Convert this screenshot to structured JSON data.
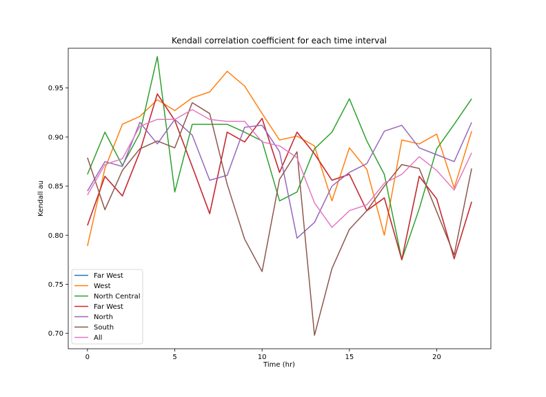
{
  "chart_data": {
    "type": "line",
    "title": "Kendall correlation coefficient for each time interval",
    "xlabel": "Time (hr)",
    "ylabel": "Kendall au",
    "xlim": [
      -1.1,
      23.1
    ],
    "ylim": [
      0.6843,
      0.9905
    ],
    "xticks": [
      0,
      5,
      10,
      15,
      20
    ],
    "yticks": [
      0.7,
      0.75,
      0.8,
      0.85,
      0.9,
      0.95
    ],
    "ytick_labels": [
      "0.70",
      "0.75",
      "0.80",
      "0.85",
      "0.90",
      "0.95"
    ],
    "grid": false,
    "legend_position": "lower-left",
    "x": [
      0,
      1,
      2,
      3,
      4,
      5,
      6,
      7,
      8,
      9,
      10,
      11,
      12,
      13,
      14,
      15,
      16,
      17,
      18,
      19,
      20,
      21,
      22
    ],
    "series": [
      {
        "name": "Far West",
        "color": "#1f77b4",
        "values": [
          0.81,
          0.86,
          0.84,
          0.885,
          0.944,
          0.917,
          0.87,
          0.822,
          0.905,
          0.895,
          0.919,
          0.864,
          0.905,
          0.883,
          0.856,
          0.862,
          0.825,
          0.838,
          0.775,
          0.86,
          0.837,
          0.776,
          0.834
        ]
      },
      {
        "name": "West",
        "color": "#ff7f0e",
        "values": [
          0.789,
          0.868,
          0.913,
          0.921,
          0.938,
          0.927,
          0.94,
          0.946,
          0.967,
          0.952,
          0.924,
          0.897,
          0.901,
          0.891,
          0.835,
          0.889,
          0.867,
          0.8,
          0.897,
          0.893,
          0.903,
          0.848,
          0.906
        ]
      },
      {
        "name": "North Central",
        "color": "#2ca02c",
        "values": [
          0.862,
          0.905,
          0.871,
          0.904,
          0.982,
          0.844,
          0.913,
          0.913,
          0.913,
          0.905,
          0.896,
          0.835,
          0.844,
          0.888,
          0.905,
          0.939,
          0.896,
          0.862,
          0.775,
          0.827,
          0.888,
          0.913,
          0.939
        ]
      },
      {
        "name": "Far West",
        "color": "#d62728",
        "values": [
          0.81,
          0.86,
          0.84,
          0.885,
          0.944,
          0.917,
          0.87,
          0.822,
          0.905,
          0.895,
          0.919,
          0.864,
          0.905,
          0.883,
          0.856,
          0.862,
          0.825,
          0.838,
          0.775,
          0.86,
          0.837,
          0.776,
          0.834
        ]
      },
      {
        "name": "North",
        "color": "#9467bd",
        "values": [
          0.845,
          0.875,
          0.87,
          0.915,
          0.893,
          0.918,
          0.902,
          0.856,
          0.861,
          0.91,
          0.912,
          0.885,
          0.797,
          0.813,
          0.85,
          0.864,
          0.873,
          0.906,
          0.912,
          0.889,
          0.882,
          0.875,
          0.915
        ]
      },
      {
        "name": "South",
        "color": "#8c564b",
        "values": [
          0.879,
          0.826,
          0.866,
          0.888,
          0.896,
          0.889,
          0.935,
          0.924,
          0.852,
          0.796,
          0.763,
          0.857,
          0.885,
          0.698,
          0.766,
          0.806,
          0.825,
          0.85,
          0.872,
          0.868,
          0.824,
          0.78,
          0.868
        ]
      },
      {
        "name": "All",
        "color": "#e377c2",
        "values": [
          0.841,
          0.872,
          0.878,
          0.911,
          0.918,
          0.918,
          0.928,
          0.918,
          0.916,
          0.916,
          0.895,
          0.891,
          0.879,
          0.833,
          0.808,
          0.825,
          0.831,
          0.853,
          0.862,
          0.88,
          0.866,
          0.846,
          0.884
        ]
      }
    ]
  }
}
